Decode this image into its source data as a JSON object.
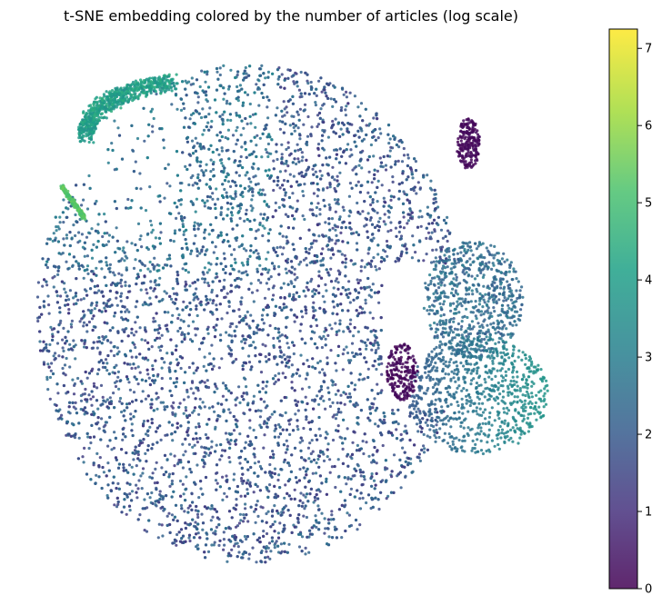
{
  "chart_data": {
    "type": "scatter",
    "title": "t-SNE embedding colored by the number of articles (log scale)",
    "xlabel": "",
    "ylabel": "",
    "axes_visible": false,
    "grid": false,
    "colormap": "viridis",
    "colorbar": {
      "range": [
        0,
        7.25
      ],
      "ticks": [
        0,
        1,
        2,
        3,
        4,
        5,
        6,
        7
      ],
      "tick_labels": [
        "0",
        "1",
        "2",
        "3",
        "4",
        "5",
        "6",
        "7"
      ],
      "placement": "right"
    },
    "regions": [
      {
        "name": "main-cloud",
        "value_range": [
          1.2,
          2.6
        ],
        "density": "high"
      },
      {
        "name": "upper-left-arc",
        "value_range": [
          3.5,
          4.5
        ]
      },
      {
        "name": "left-hook-tip",
        "value_range": [
          5.0,
          5.6
        ]
      },
      {
        "name": "right-lobe-upper",
        "value_range": [
          2.0,
          3.0
        ]
      },
      {
        "name": "right-lobe-lower",
        "value_range": [
          2.0,
          3.8
        ]
      },
      {
        "name": "dark-cluster-upper-right",
        "value_range": [
          0,
          0.3
        ]
      },
      {
        "name": "dark-cluster-center-right",
        "value_range": [
          0,
          0.3
        ]
      }
    ]
  }
}
